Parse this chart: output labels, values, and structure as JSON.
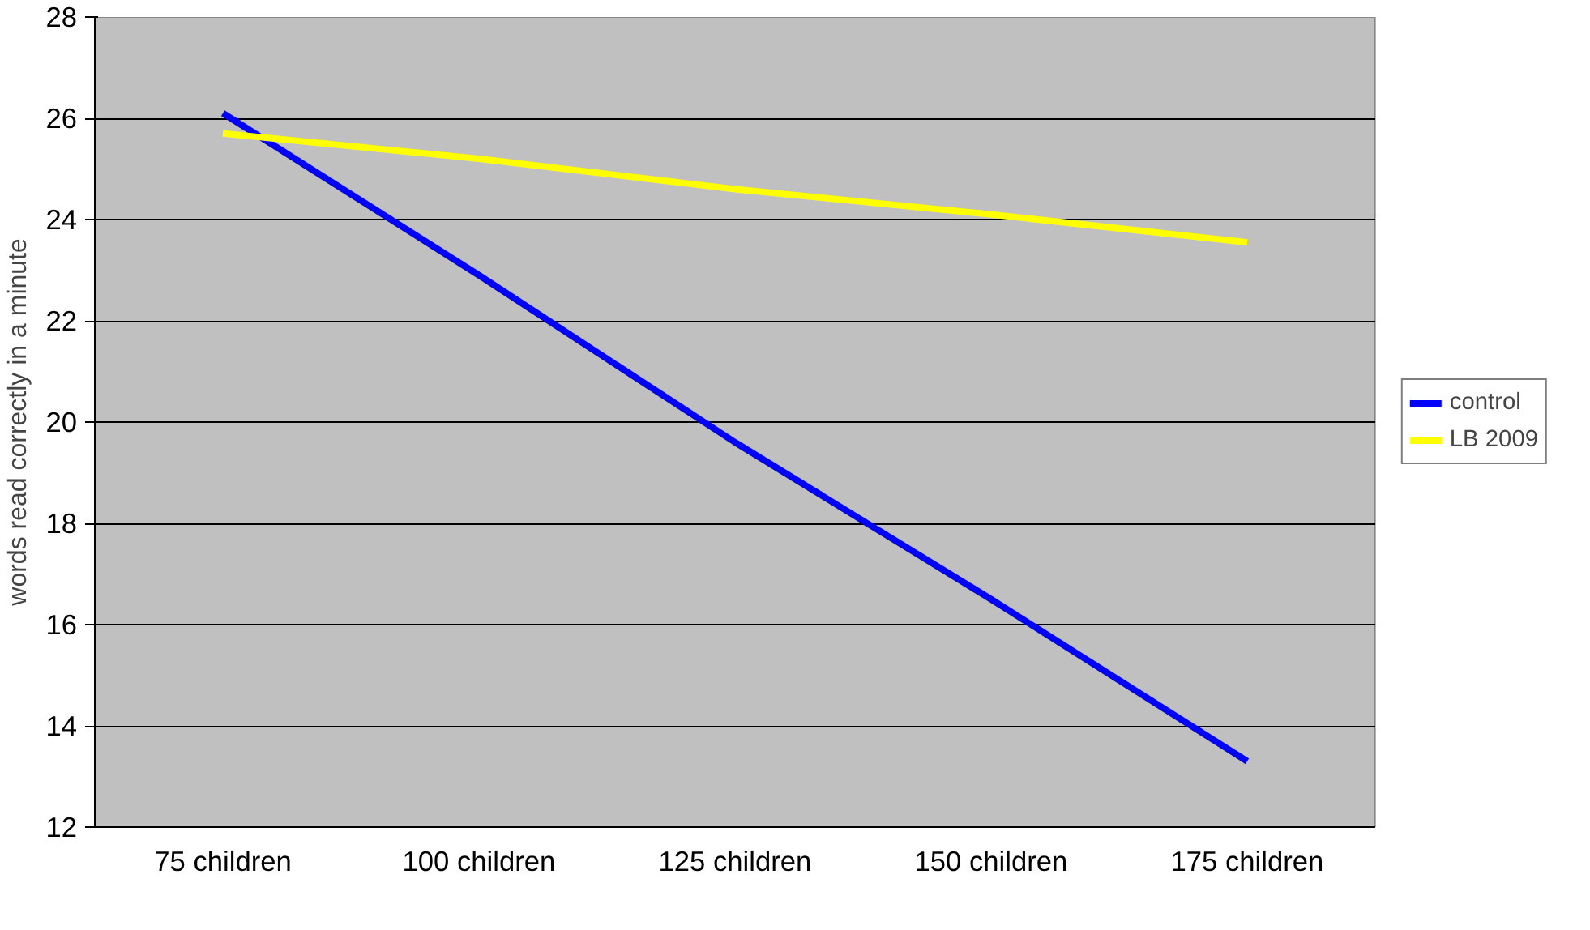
{
  "chart_data": {
    "type": "line",
    "ylabel": "words read correctly in a minute",
    "categories": [
      "75 children",
      "100 children",
      "125 children",
      "150 children",
      "175 children"
    ],
    "series": [
      {
        "name": "control",
        "color": "#0000ff",
        "values": [
          26.1,
          22.9,
          19.6,
          16.5,
          13.3
        ]
      },
      {
        "name": "LB 2009",
        "color": "#ffff00",
        "values": [
          25.7,
          25.2,
          24.6,
          24.1,
          23.55
        ]
      }
    ],
    "ylim": [
      12,
      28
    ],
    "yticks": [
      12,
      14,
      16,
      18,
      20,
      22,
      24,
      26,
      28
    ],
    "grid": "y",
    "legend": "right",
    "marker": "none",
    "line_style": "solid"
  }
}
